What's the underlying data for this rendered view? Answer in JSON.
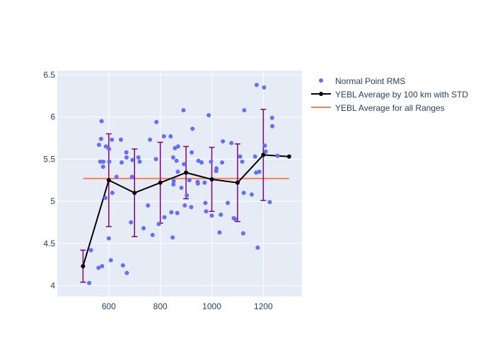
{
  "chart_data": {
    "type": "scatter",
    "title": "",
    "xlabel": "",
    "ylabel": "",
    "xlim": [
      400,
      1350
    ],
    "ylim": [
      3.87,
      6.55
    ],
    "x_ticks": [
      600,
      800,
      1000,
      1200
    ],
    "y_ticks": [
      4,
      4.5,
      5,
      5.5,
      6,
      6.5
    ],
    "x_tick_labels": [
      "600",
      "800",
      "1000",
      "1200"
    ],
    "y_tick_labels": [
      "4",
      "4.5",
      "5",
      "5.5",
      "6",
      "6.5"
    ],
    "grid": true,
    "legend_position": "right",
    "colors": {
      "plot_bg": "#e5ecf6",
      "grid": "#ffffff",
      "points": "#636efa",
      "average_line": "#000000",
      "error_bars": "#800080",
      "overall_line": "#ff7f50",
      "text": "#2a3f5f"
    },
    "series": [
      {
        "name": "Normal Point RMS",
        "kind": "markers",
        "points": [
          [
            524,
            4.03
          ],
          [
            531,
            4.42
          ],
          [
            560,
            4.21
          ],
          [
            562,
            5.67
          ],
          [
            567,
            5.47
          ],
          [
            570,
            5.74
          ],
          [
            572,
            5.95
          ],
          [
            574,
            4.23
          ],
          [
            578,
            5.41
          ],
          [
            579,
            5.47
          ],
          [
            587,
            5.04
          ],
          [
            589,
            5.65
          ],
          [
            600,
            4.56
          ],
          [
            601,
            5.62
          ],
          [
            602,
            5.47
          ],
          [
            608,
            4.3
          ],
          [
            612,
            5.73
          ],
          [
            614,
            5.1
          ],
          [
            630,
            5.29
          ],
          [
            647,
            5.73
          ],
          [
            650,
            5.46
          ],
          [
            655,
            4.24
          ],
          [
            668,
            5.58
          ],
          [
            669,
            5.52
          ],
          [
            670,
            4.15
          ],
          [
            686,
            4.75
          ],
          [
            690,
            5.29
          ],
          [
            692,
            5.49
          ],
          [
            715,
            5.52
          ],
          [
            720,
            5.47
          ],
          [
            735,
            4.68
          ],
          [
            752,
            4.95
          ],
          [
            760,
            5.73
          ],
          [
            770,
            4.6
          ],
          [
            783,
            5.5
          ],
          [
            785,
            5.94
          ],
          [
            794,
            4.73
          ],
          [
            814,
            5.77
          ],
          [
            816,
            4.81
          ],
          [
            840,
            5.77
          ],
          [
            843,
            4.87
          ],
          [
            848,
            4.57
          ],
          [
            850,
            5.52
          ],
          [
            851,
            5.2
          ],
          [
            852,
            5.24
          ],
          [
            857,
            5.63
          ],
          [
            863,
            5.48
          ],
          [
            866,
            4.86
          ],
          [
            868,
            5.35
          ],
          [
            869,
            5.65
          ],
          [
            882,
            5.16
          ],
          [
            890,
            6.08
          ],
          [
            892,
            5.44
          ],
          [
            895,
            4.95
          ],
          [
            903,
            5.07
          ],
          [
            913,
            5.25
          ],
          [
            920,
            4.93
          ],
          [
            922,
            5.58
          ],
          [
            925,
            5.86
          ],
          [
            945,
            5.23
          ],
          [
            946,
            5.21
          ],
          [
            948,
            5.48
          ],
          [
            960,
            5.46
          ],
          [
            972,
            5.22
          ],
          [
            975,
            4.98
          ],
          [
            978,
            4.88
          ],
          [
            988,
            6.02
          ],
          [
            997,
            5.47
          ],
          [
            1000,
            4.83
          ],
          [
            1017,
            5.36
          ],
          [
            1018,
            5.39
          ],
          [
            1030,
            4.63
          ],
          [
            1035,
            4.84
          ],
          [
            1040,
            5.46
          ],
          [
            1043,
            5.71
          ],
          [
            1062,
            4.98
          ],
          [
            1076,
            5.69
          ],
          [
            1085,
            4.8
          ],
          [
            1090,
            4.79
          ],
          [
            1110,
            5.53
          ],
          [
            1118,
            5.47
          ],
          [
            1122,
            4.62
          ],
          [
            1124,
            5.1
          ],
          [
            1126,
            6.08
          ],
          [
            1155,
            5.08
          ],
          [
            1168,
            5.53
          ],
          [
            1172,
            5.34
          ],
          [
            1174,
            6.38
          ],
          [
            1178,
            4.45
          ],
          [
            1184,
            5.35
          ],
          [
            1203,
            6.35
          ],
          [
            1206,
            5.66
          ],
          [
            1209,
            5.59
          ],
          [
            1225,
            4.99
          ],
          [
            1234,
            5.99
          ],
          [
            1235,
            5.89
          ],
          [
            1255,
            5.54
          ]
        ]
      },
      {
        "name": "YEBL Average by 100 km with STD",
        "kind": "lines+markers",
        "x": [
          500,
          600,
          700,
          800,
          900,
          1000,
          1100,
          1200,
          1300
        ],
        "y": [
          4.23,
          5.25,
          5.1,
          5.22,
          5.34,
          5.26,
          5.22,
          5.55,
          5.53
        ],
        "error": [
          0.19,
          0.55,
          0.52,
          0.48,
          0.31,
          0.38,
          0.46,
          0.54,
          null
        ]
      },
      {
        "name": "YEBL Average for all Ranges",
        "kind": "line",
        "x": [
          500,
          1300
        ],
        "y": [
          5.27,
          5.27
        ]
      }
    ]
  }
}
